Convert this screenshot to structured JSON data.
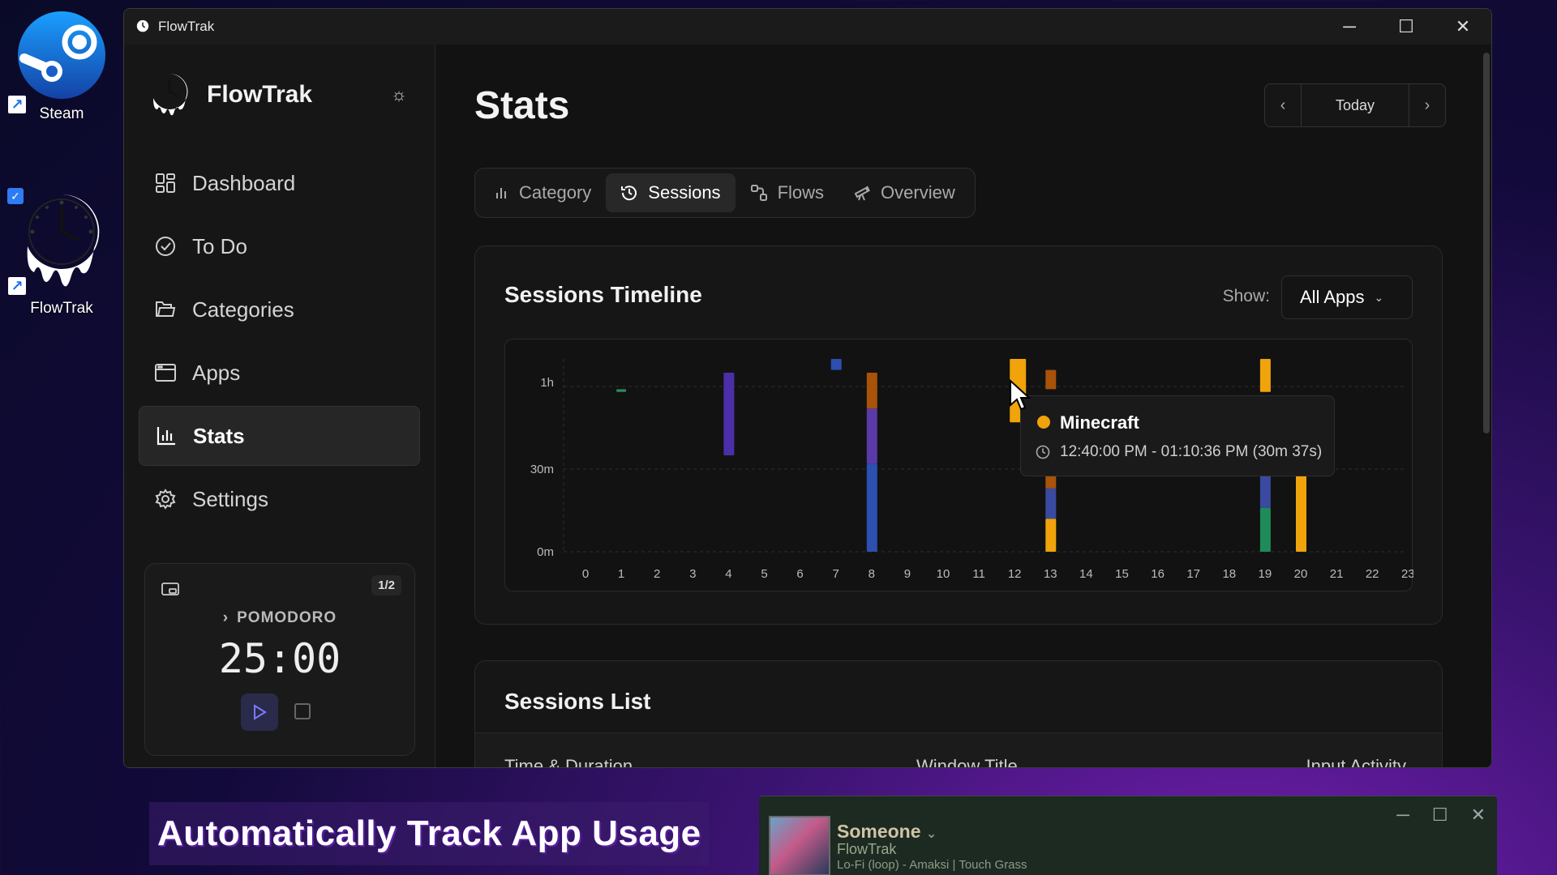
{
  "desktop": {
    "icons": [
      {
        "label": "Steam"
      },
      {
        "label": "FlowTrak"
      }
    ]
  },
  "window": {
    "title": "FlowTrak",
    "controls": {
      "minimize": "─",
      "maximize": "☐",
      "close": "✕"
    }
  },
  "sidebar": {
    "brand": "FlowTrak",
    "items": [
      {
        "label": "Dashboard",
        "icon": "grid-icon"
      },
      {
        "label": "To Do",
        "icon": "check-circle-icon"
      },
      {
        "label": "Categories",
        "icon": "folder-icon"
      },
      {
        "label": "Apps",
        "icon": "window-icon"
      },
      {
        "label": "Stats",
        "icon": "bar-chart-icon",
        "active": true
      },
      {
        "label": "Settings",
        "icon": "gear-icon"
      }
    ],
    "pomodoro": {
      "counter": "1/2",
      "label": "POMODORO",
      "time": "25:00"
    }
  },
  "main": {
    "title": "Stats",
    "date_nav": {
      "label": "Today"
    },
    "tabs": [
      {
        "label": "Category",
        "icon": "bar-chart-icon"
      },
      {
        "label": "Sessions",
        "icon": "history-icon",
        "active": true
      },
      {
        "label": "Flows",
        "icon": "flow-icon"
      },
      {
        "label": "Overview",
        "icon": "telescope-icon"
      }
    ],
    "timeline": {
      "title": "Sessions Timeline",
      "show_label": "Show:",
      "filter_value": "All Apps"
    },
    "tooltip": {
      "app": "Minecraft",
      "time": "12:40:00 PM - 01:10:36 PM (30m 37s)",
      "color": "#f0a30a"
    },
    "sessions_list": {
      "title": "Sessions List",
      "columns": [
        "Time & Duration",
        "Window Title",
        "Input Activity"
      ]
    }
  },
  "chart_data": {
    "type": "bar",
    "x_ticks": [
      "0",
      "1",
      "2",
      "3",
      "4",
      "5",
      "6",
      "7",
      "8",
      "9",
      "10",
      "11",
      "12",
      "13",
      "14",
      "15",
      "16",
      "17",
      "18",
      "19",
      "20",
      "21",
      "22",
      "23"
    ],
    "y_ticks": [
      "0m",
      "30m",
      "1h"
    ],
    "ylim": [
      0,
      70
    ],
    "xlabel": "",
    "ylabel": "",
    "segments": [
      {
        "hour": 1,
        "start_min": 58,
        "end_min": 59,
        "color": "#2a8a5a"
      },
      {
        "hour": 4,
        "start_min": 35,
        "end_min": 65,
        "color": "#4a2fa8"
      },
      {
        "hour": 7,
        "start_min": 66,
        "end_min": 70,
        "color": "#2c4fb0"
      },
      {
        "hour": 8,
        "start_min": 0,
        "end_min": 32,
        "color": "#2c4fb0"
      },
      {
        "hour": 8,
        "start_min": 32,
        "end_min": 52,
        "color": "#5a3aa8"
      },
      {
        "hour": 8,
        "start_min": 52,
        "end_min": 65,
        "color": "#a8520a"
      },
      {
        "hour": 12,
        "start_min": 47,
        "end_min": 70,
        "color": "#f0a30a"
      },
      {
        "hour": 13,
        "start_min": 0,
        "end_min": 12,
        "color": "#f0a30a"
      },
      {
        "hour": 13,
        "start_min": 12,
        "end_min": 23,
        "color": "#3a4aa0"
      },
      {
        "hour": 13,
        "start_min": 23,
        "end_min": 29,
        "color": "#a8520a"
      },
      {
        "hour": 13,
        "start_min": 59,
        "end_min": 66,
        "color": "#a8520a"
      },
      {
        "hour": 19,
        "start_min": 0,
        "end_min": 16,
        "color": "#1f8a5a"
      },
      {
        "hour": 19,
        "start_min": 16,
        "end_min": 28,
        "color": "#3a4aa0"
      },
      {
        "hour": 19,
        "start_min": 58,
        "end_min": 70,
        "color": "#f0a30a"
      },
      {
        "hour": 20,
        "start_min": 0,
        "end_min": 28,
        "color": "#f0a30a"
      }
    ]
  },
  "overlay": {
    "caption": "Automatically Track App Usage",
    "player": {
      "title": "Someone",
      "subtitle": "FlowTrak",
      "track": "Lo-Fi (loop) - Amaksi | Touch Grass"
    }
  }
}
